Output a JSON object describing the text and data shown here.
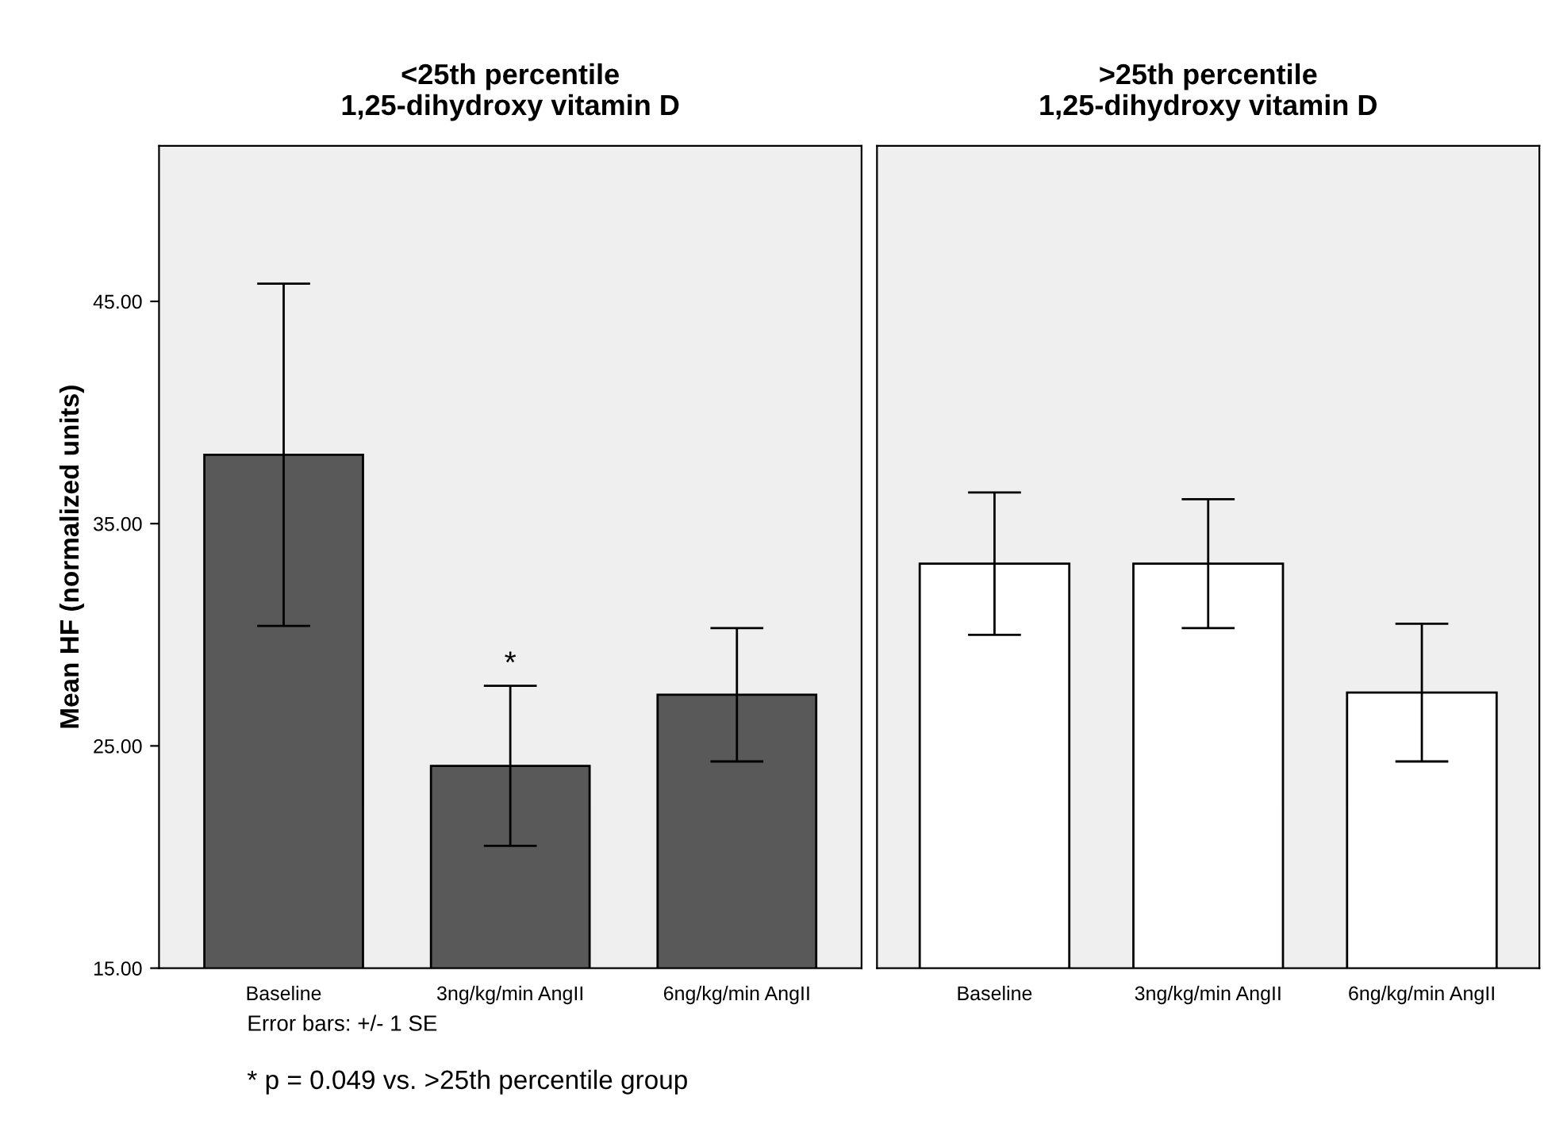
{
  "chart_data": [
    {
      "type": "bar",
      "title": "<25th percentile\n1,25-dihydroxy vitamin D",
      "ylabel": "Mean HF (normalized units)",
      "categories": [
        "Baseline",
        "3ng/kg/min AngII",
        "6ng/kg/min AngII"
      ],
      "series": [
        {
          "color": "#595959",
          "values": [
            38.1,
            24.1,
            27.3
          ],
          "errors": [
            7.7,
            3.6,
            3.0
          ]
        }
      ],
      "ylim": [
        15,
        52
      ],
      "yticks": [
        {
          "value": 15,
          "label": "15.00"
        },
        {
          "value": 25,
          "label": "25.00"
        },
        {
          "value": 35,
          "label": "35.00"
        },
        {
          "value": 45,
          "label": "45.00"
        }
      ],
      "annotations": [
        {
          "text": "*",
          "x": "3ng/kg/min AngII",
          "y": 27.7
        },
        "Error bars: +/- 1 SE",
        "* p = 0.049 vs. >25th percentile group"
      ]
    },
    {
      "type": "bar",
      "title": ">25th percentile\n1,25-dihydroxy vitamin D",
      "categories": [
        "Baseline",
        "3ng/kg/min AngII",
        "6ng/kg/min AngII"
      ],
      "series": [
        {
          "color": "#ffffff",
          "values": [
            33.2,
            33.2,
            27.4
          ],
          "errors": [
            3.2,
            2.9,
            3.1
          ]
        }
      ],
      "ylim": [
        15,
        52
      ],
      "tick_labels": "x"
    }
  ]
}
